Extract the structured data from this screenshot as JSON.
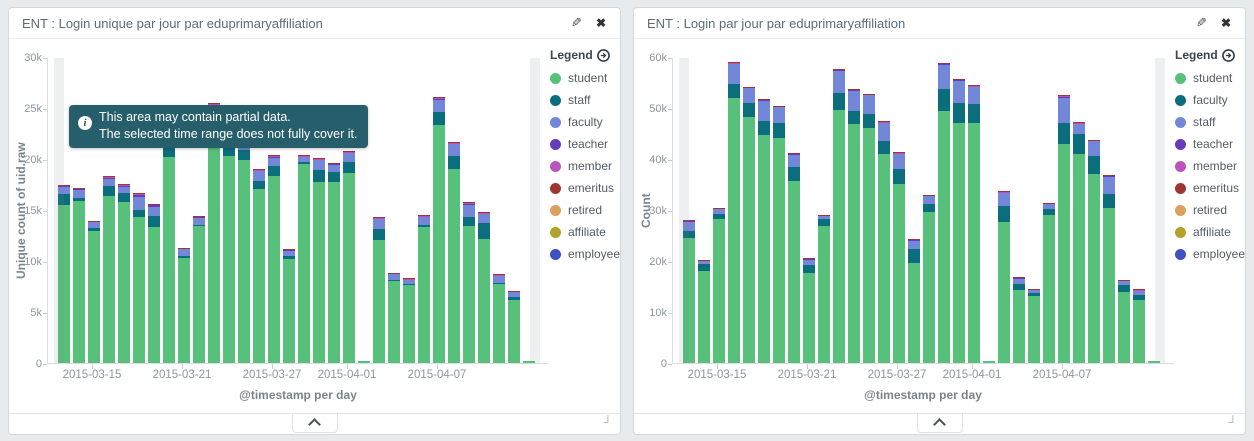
{
  "page": {
    "background": "#e8ebee",
    "tooltip_bg": "#265f6b"
  },
  "panels": [
    {
      "title": "ENT : Login unique par jour par eduprimaryaffiliation",
      "legend_title": "Legend",
      "tooltip": {
        "line1": "This area may contain partial data.",
        "line2": "The selected time range does not fully cover it."
      }
    },
    {
      "title": "ENT : Login par jour par eduprimaryaffiliation",
      "legend_title": "Legend"
    }
  ],
  "chart_data": [
    {
      "type": "bar",
      "stacked": true,
      "title": "ENT : Login unique par jour par eduprimaryaffiliation",
      "ylabel": "Unique count of uid.raw",
      "xlabel": "@timestamp per day",
      "ylim": [
        0,
        30000
      ],
      "grid": false,
      "legend_position": "right",
      "partial_data_bands": "both_edges",
      "yticks": [
        {
          "v": 0,
          "label": "0"
        },
        {
          "v": 5000,
          "label": "5k"
        },
        {
          "v": 10000,
          "label": "10k"
        },
        {
          "v": 15000,
          "label": "15k"
        },
        {
          "v": 20000,
          "label": "20k"
        },
        {
          "v": 25000,
          "label": "25k"
        },
        {
          "v": 30000,
          "label": "30k"
        }
      ],
      "categories": [
        "2015-03-13",
        "2015-03-14",
        "2015-03-15",
        "2015-03-16",
        "2015-03-17",
        "2015-03-18",
        "2015-03-19",
        "2015-03-20",
        "2015-03-21",
        "2015-03-22",
        "2015-03-23",
        "2015-03-24",
        "2015-03-25",
        "2015-03-26",
        "2015-03-27",
        "2015-03-28",
        "2015-03-29",
        "2015-03-30",
        "2015-03-31",
        "2015-04-01",
        "2015-04-02",
        "2015-04-03",
        "2015-04-04",
        "2015-04-05",
        "2015-04-06",
        "2015-04-07",
        "2015-04-08",
        "2015-04-09",
        "2015-04-10",
        "2015-04-11",
        "2015-04-12",
        "2015-04-13"
      ],
      "xticks": [
        {
          "index": 2,
          "label": "2015-03-15"
        },
        {
          "index": 8,
          "label": "2015-03-21"
        },
        {
          "index": 14,
          "label": "2015-03-27"
        },
        {
          "index": 19,
          "label": "2015-04-01"
        },
        {
          "index": 25,
          "label": "2015-04-07"
        }
      ],
      "series": [
        {
          "name": "student",
          "color": "#57c17b",
          "values": [
            15500,
            15900,
            12900,
            16400,
            15800,
            14300,
            13350,
            20200,
            10300,
            13400,
            22600,
            20300,
            19900,
            17100,
            18300,
            10200,
            19500,
            17750,
            17700,
            18600,
            150,
            12100,
            8000,
            7600,
            13300,
            23300,
            19000,
            13400,
            12200,
            7700,
            6200,
            150
          ]
        },
        {
          "name": "staff",
          "color": "#0b6e7c",
          "values": [
            1050,
            300,
            300,
            1000,
            850,
            700,
            1100,
            1100,
            200,
            150,
            1500,
            950,
            1000,
            750,
            1050,
            250,
            250,
            1150,
            1000,
            1100,
            0,
            1000,
            100,
            100,
            200,
            1300,
            1300,
            900,
            1500,
            150,
            250,
            0
          ]
        },
        {
          "name": "faculty",
          "color": "#7287d8",
          "values": [
            750,
            800,
            600,
            700,
            650,
            1300,
            800,
            700,
            650,
            700,
            1100,
            600,
            700,
            950,
            750,
            600,
            450,
            1000,
            750,
            900,
            0,
            1000,
            600,
            450,
            800,
            1200,
            1150,
            1250,
            900,
            700,
            500,
            0
          ]
        },
        {
          "name": "teacher",
          "color": "#663db8",
          "values": [
            50,
            50,
            40,
            80,
            80,
            200,
            250,
            100,
            40,
            40,
            150,
            50,
            50,
            50,
            100,
            40,
            50,
            50,
            50,
            50,
            0,
            40,
            30,
            30,
            40,
            80,
            80,
            60,
            60,
            30,
            30,
            0
          ]
        },
        {
          "name": "member",
          "color": "#bc52bc",
          "values": [
            60,
            60,
            50,
            60,
            50,
            50,
            50,
            50,
            50,
            50,
            80,
            50,
            50,
            50,
            80,
            50,
            80,
            50,
            50,
            50,
            0,
            50,
            30,
            30,
            50,
            80,
            60,
            50,
            50,
            30,
            30,
            0
          ]
        },
        {
          "name": "emeritus",
          "color": "#9e3533",
          "values": [
            30,
            30,
            20,
            30,
            30,
            30,
            30,
            30,
            20,
            20,
            40,
            30,
            30,
            30,
            40,
            20,
            40,
            30,
            30,
            30,
            0,
            30,
            20,
            20,
            30,
            40,
            30,
            30,
            30,
            20,
            20,
            0
          ]
        }
      ],
      "legend": [
        {
          "label": "student",
          "color": "#57c17b"
        },
        {
          "label": "staff",
          "color": "#0b6e7c"
        },
        {
          "label": "faculty",
          "color": "#7287d8"
        },
        {
          "label": "teacher",
          "color": "#663db8"
        },
        {
          "label": "member",
          "color": "#bc52bc"
        },
        {
          "label": "emeritus",
          "color": "#9e3533"
        },
        {
          "label": "retired",
          "color": "#daa05d"
        },
        {
          "label": "affiliate",
          "color": "#b0a32c"
        },
        {
          "label": "employee",
          "color": "#3f50c1"
        }
      ]
    },
    {
      "type": "bar",
      "stacked": true,
      "title": "ENT : Login par jour par eduprimaryaffiliation",
      "ylabel": "Count",
      "xlabel": "@timestamp per day",
      "ylim": [
        0,
        60000
      ],
      "grid": false,
      "legend_position": "right",
      "partial_data_bands": "both_edges",
      "yticks": [
        {
          "v": 0,
          "label": "0"
        },
        {
          "v": 10000,
          "label": "10k"
        },
        {
          "v": 20000,
          "label": "20k"
        },
        {
          "v": 30000,
          "label": "30k"
        },
        {
          "v": 40000,
          "label": "40k"
        },
        {
          "v": 50000,
          "label": "50k"
        },
        {
          "v": 60000,
          "label": "60k"
        }
      ],
      "categories": [
        "2015-03-13",
        "2015-03-14",
        "2015-03-15",
        "2015-03-16",
        "2015-03-17",
        "2015-03-18",
        "2015-03-19",
        "2015-03-20",
        "2015-03-21",
        "2015-03-22",
        "2015-03-23",
        "2015-03-24",
        "2015-03-25",
        "2015-03-26",
        "2015-03-27",
        "2015-03-28",
        "2015-03-29",
        "2015-03-30",
        "2015-03-31",
        "2015-04-01",
        "2015-04-02",
        "2015-04-03",
        "2015-04-04",
        "2015-04-05",
        "2015-04-06",
        "2015-04-07",
        "2015-04-08",
        "2015-04-09",
        "2015-04-10",
        "2015-04-11",
        "2015-04-12",
        "2015-04-13"
      ],
      "xticks": [
        {
          "index": 2,
          "label": "2015-03-15"
        },
        {
          "index": 8,
          "label": "2015-03-21"
        },
        {
          "index": 14,
          "label": "2015-03-27"
        },
        {
          "index": 19,
          "label": "2015-04-01"
        },
        {
          "index": 25,
          "label": "2015-04-07"
        }
      ],
      "series": [
        {
          "name": "student",
          "color": "#57c17b",
          "values": [
            24500,
            18100,
            28200,
            51900,
            48200,
            44800,
            44150,
            35700,
            17700,
            26800,
            49700,
            46800,
            46000,
            41000,
            35150,
            19700,
            29700,
            49500,
            47100,
            47100,
            400,
            27700,
            14300,
            13200,
            29000,
            43000,
            40900,
            37000,
            30300,
            13900,
            12300,
            300
          ]
        },
        {
          "name": "faculty",
          "color": "#0b6e7c",
          "values": [
            1450,
            1300,
            950,
            2850,
            2800,
            2750,
            2950,
            2700,
            1500,
            1400,
            3300,
            2700,
            2850,
            2600,
            2850,
            2600,
            1450,
            4250,
            3900,
            3700,
            0,
            3100,
            1200,
            600,
            1200,
            4100,
            4100,
            3600,
            2900,
            1400,
            1100,
            0
          ]
        },
        {
          "name": "staff",
          "color": "#7287d8",
          "values": [
            1800,
            600,
            1000,
            3900,
            2900,
            3950,
            3050,
            2500,
            1100,
            600,
            4300,
            3900,
            3650,
            3500,
            3000,
            1750,
            1600,
            4750,
            4400,
            3300,
            0,
            2600,
            1100,
            500,
            1000,
            5000,
            1900,
            2900,
            3400,
            800,
            800,
            0
          ]
        },
        {
          "name": "teacher",
          "color": "#663db8",
          "values": [
            60,
            50,
            50,
            100,
            80,
            100,
            80,
            80,
            50,
            50,
            100,
            80,
            80,
            80,
            80,
            50,
            50,
            100,
            100,
            100,
            0,
            60,
            40,
            30,
            50,
            100,
            80,
            80,
            60,
            40,
            40,
            0
          ]
        },
        {
          "name": "member",
          "color": "#bc52bc",
          "values": [
            80,
            60,
            60,
            100,
            80,
            80,
            80,
            80,
            60,
            60,
            100,
            80,
            80,
            80,
            80,
            60,
            60,
            100,
            100,
            100,
            0,
            80,
            60,
            40,
            60,
            100,
            100,
            80,
            80,
            60,
            60,
            0
          ]
        },
        {
          "name": "emeritus",
          "color": "#9e3533",
          "values": [
            40,
            30,
            30,
            50,
            40,
            40,
            40,
            40,
            30,
            30,
            50,
            40,
            40,
            40,
            40,
            30,
            30,
            50,
            50,
            50,
            0,
            40,
            30,
            20,
            30,
            50,
            50,
            40,
            40,
            30,
            30,
            0
          ]
        }
      ],
      "legend": [
        {
          "label": "student",
          "color": "#57c17b"
        },
        {
          "label": "faculty",
          "color": "#0b6e7c"
        },
        {
          "label": "staff",
          "color": "#7287d8"
        },
        {
          "label": "teacher",
          "color": "#663db8"
        },
        {
          "label": "member",
          "color": "#bc52bc"
        },
        {
          "label": "emeritus",
          "color": "#9e3533"
        },
        {
          "label": "retired",
          "color": "#daa05d"
        },
        {
          "label": "affiliate",
          "color": "#b0a32c"
        },
        {
          "label": "employee",
          "color": "#3f50c1"
        }
      ]
    }
  ]
}
